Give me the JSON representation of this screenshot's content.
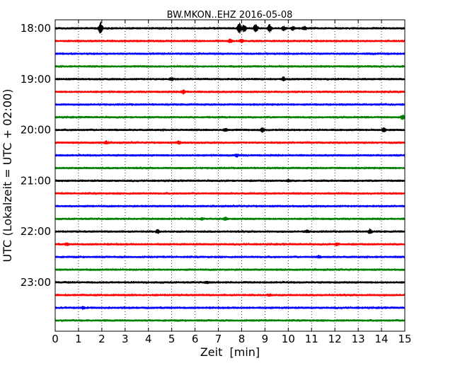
{
  "chart_data": {
    "type": "line",
    "title": "BW.MKON..EHZ 2016-05-08",
    "xlabel": "Zeit  [min]",
    "ylabel": "UTC (Lokalzeit = UTC + 02:00)",
    "xlim": [
      0,
      15
    ],
    "x_ticks": [
      "0",
      "1",
      "2",
      "3",
      "4",
      "5",
      "6",
      "7",
      "8",
      "9",
      "10",
      "11",
      "12",
      "13",
      "14",
      "15"
    ],
    "y_ticks": [
      "18:00",
      "19:00",
      "20:00",
      "21:00",
      "22:00",
      "23:00"
    ],
    "grid": "vertical dotted",
    "trace_colors": [
      "#000000",
      "#ff0000",
      "#0000ff",
      "#008000"
    ],
    "trace_minutes_per_line": 15,
    "traces": [
      {
        "start": "18:00",
        "events": [
          {
            "x": 1.95,
            "amp": 1.0
          },
          {
            "x": 7.9,
            "amp": 0.9
          },
          {
            "x": 8.1,
            "amp": 0.6
          },
          {
            "x": 8.6,
            "amp": 0.7
          },
          {
            "x": 9.2,
            "amp": 0.6
          },
          {
            "x": 9.8,
            "amp": 0.3
          },
          {
            "x": 10.2,
            "amp": 0.3
          },
          {
            "x": 10.7,
            "amp": 0.25
          }
        ]
      },
      {
        "start": "18:15",
        "events": [
          {
            "x": 7.5,
            "amp": 0.25
          },
          {
            "x": 8.0,
            "amp": 0.2
          }
        ]
      },
      {
        "start": "18:30",
        "events": []
      },
      {
        "start": "18:45",
        "events": []
      },
      {
        "start": "19:00",
        "events": [
          {
            "x": 5.0,
            "amp": 0.2
          },
          {
            "x": 9.8,
            "amp": 0.3
          }
        ]
      },
      {
        "start": "19:15",
        "events": [
          {
            "x": 5.5,
            "amp": 0.3
          }
        ]
      },
      {
        "start": "19:30",
        "events": []
      },
      {
        "start": "19:45",
        "events": [
          {
            "x": 14.9,
            "amp": 0.35
          }
        ]
      },
      {
        "start": "20:00",
        "events": [
          {
            "x": 7.3,
            "amp": 0.2
          },
          {
            "x": 8.9,
            "amp": 0.35
          },
          {
            "x": 14.1,
            "amp": 0.3
          }
        ]
      },
      {
        "start": "20:15",
        "events": [
          {
            "x": 2.2,
            "amp": 0.2
          },
          {
            "x": 5.3,
            "amp": 0.2
          }
        ]
      },
      {
        "start": "20:30",
        "events": [
          {
            "x": 7.8,
            "amp": 0.2
          }
        ]
      },
      {
        "start": "20:45",
        "events": []
      },
      {
        "start": "21:00",
        "events": [
          {
            "x": 10.0,
            "amp": 0.15
          }
        ]
      },
      {
        "start": "21:15",
        "events": []
      },
      {
        "start": "21:30",
        "events": []
      },
      {
        "start": "21:45",
        "events": [
          {
            "x": 6.3,
            "amp": 0.15
          },
          {
            "x": 7.3,
            "amp": 0.2
          }
        ]
      },
      {
        "start": "22:00",
        "events": [
          {
            "x": 4.4,
            "amp": 0.25
          },
          {
            "x": 10.8,
            "amp": 0.2
          },
          {
            "x": 13.5,
            "amp": 0.3
          }
        ]
      },
      {
        "start": "22:15",
        "events": [
          {
            "x": 0.5,
            "amp": 0.15
          },
          {
            "x": 12.1,
            "amp": 0.2
          }
        ]
      },
      {
        "start": "22:30",
        "events": [
          {
            "x": 11.3,
            "amp": 0.15
          }
        ]
      },
      {
        "start": "22:45",
        "events": []
      },
      {
        "start": "23:00",
        "events": [
          {
            "x": 6.5,
            "amp": 0.15
          }
        ]
      },
      {
        "start": "23:15",
        "events": [
          {
            "x": 9.2,
            "amp": 0.15
          }
        ]
      },
      {
        "start": "23:30",
        "events": [
          {
            "x": 1.2,
            "amp": 0.15
          }
        ]
      },
      {
        "start": "23:45",
        "events": []
      }
    ]
  }
}
